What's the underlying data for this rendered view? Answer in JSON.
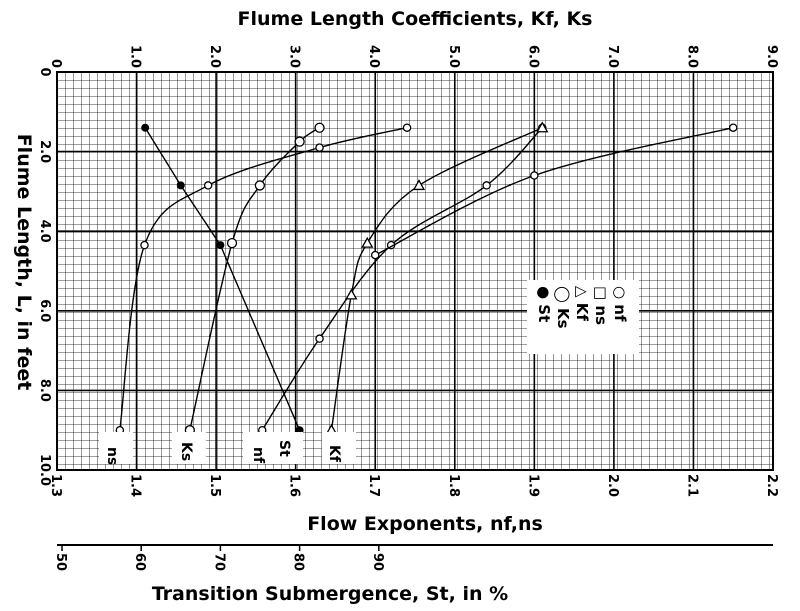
{
  "chart_data": {
    "type": "line",
    "title_top": "Flume Length Coefficients, Kf, Ks",
    "title_bottom": "Flow Exponents, nf,ns",
    "title_left": "Flume Length, L, in feet",
    "title_submergence": "Transition Submergence, St, in %",
    "grid": true,
    "axes": {
      "top": {
        "label": "Flume Length Coefficients, Kf, Ks",
        "range": [
          0,
          9.0
        ],
        "ticks": [
          "0",
          "1.0",
          "2.0",
          "3.0",
          "4.0",
          "5.0",
          "6.0",
          "7.0",
          "8.0",
          "9.0"
        ]
      },
      "bottom": {
        "label": "Flow Exponents, nf,ns",
        "range": [
          1.3,
          2.2
        ],
        "ticks": [
          "1.3",
          "1.4",
          "1.5",
          "1.6",
          "1.7",
          "1.8",
          "1.9",
          "2.0",
          "2.1",
          "2.2"
        ]
      },
      "left": {
        "label": "Flume Length, L, in feet",
        "range": [
          0,
          10.0
        ],
        "inverted": true,
        "ticks": [
          "0",
          "2.0",
          "4.0",
          "6.0",
          "8.0",
          "10.0"
        ]
      },
      "submergence": {
        "label": "Transition Submergence, St, in %",
        "range": [
          50,
          100
        ],
        "ticks": [
          "50",
          "60",
          "70",
          "80",
          "90"
        ]
      }
    },
    "legend": {
      "placement": "right",
      "entries": [
        {
          "marker": "○",
          "label": "nf"
        },
        {
          "marker": "□",
          "label": "ns"
        },
        {
          "marker": "△",
          "label": "Kf"
        },
        {
          "marker": "◯",
          "label": "Ks"
        },
        {
          "marker": "●",
          "label": "St"
        }
      ]
    },
    "series": [
      {
        "name": "ns",
        "label": "ns",
        "axis": "flow_exponent",
        "marker": "circle",
        "points": [
          [
            1.379,
            9.0
          ],
          [
            1.41,
            4.35
          ],
          [
            1.49,
            2.85
          ],
          [
            1.63,
            1.9
          ],
          [
            1.74,
            1.4
          ]
        ]
      },
      {
        "name": "Ks",
        "label": "Ks",
        "axis": "length_coefficient",
        "marker": "circle",
        "points": [
          [
            1.67,
            9.0
          ],
          [
            2.2,
            4.3
          ],
          [
            2.55,
            2.85
          ],
          [
            3.05,
            1.75
          ],
          [
            3.3,
            1.4
          ]
        ]
      },
      {
        "name": "nf",
        "label": "nf",
        "axis": "flow_exponent",
        "marker": "circle",
        "points": [
          [
            1.558,
            9.0
          ],
          [
            1.63,
            6.7
          ],
          [
            1.72,
            4.35
          ],
          [
            1.84,
            2.85
          ],
          [
            1.91,
            1.4
          ]
        ]
      },
      {
        "name": "Kf",
        "label": "Kf",
        "axis": "length_coefficient",
        "marker": "triangle",
        "points": [
          [
            3.45,
            9.0
          ],
          [
            3.7,
            5.6
          ],
          [
            3.9,
            4.3
          ],
          [
            4.55,
            2.85
          ],
          [
            6.1,
            1.4
          ]
        ]
      },
      {
        "name": "St",
        "label": "St",
        "axis": "submergence",
        "marker": "filled",
        "points": [
          [
            60.5,
            1.4
          ],
          [
            65,
            2.85
          ],
          [
            70,
            4.35
          ],
          [
            80,
            9.0
          ]
        ]
      },
      {
        "name": "",
        "label": "",
        "axis": "flow_exponent",
        "marker": "circle",
        "points": [
          [
            1.7,
            4.6
          ],
          [
            1.9,
            2.6
          ],
          [
            2.15,
            1.4
          ]
        ]
      }
    ]
  }
}
